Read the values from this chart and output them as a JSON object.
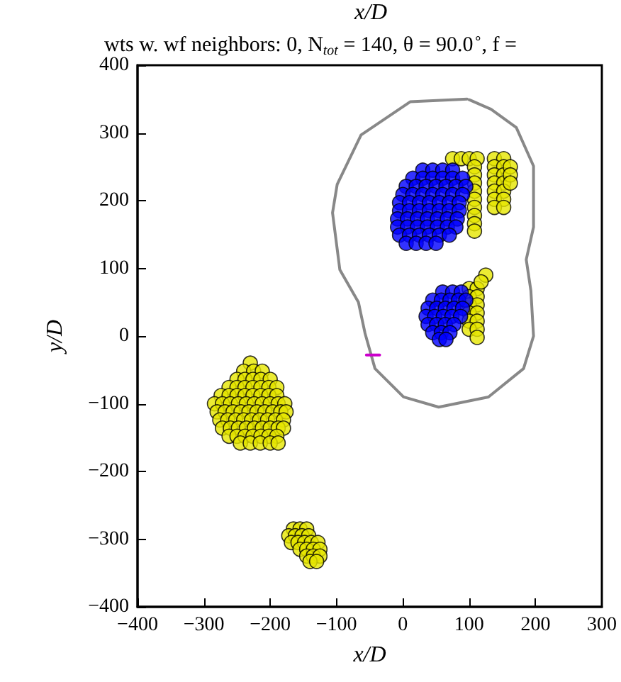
{
  "chart_data": {
    "type": "scatter",
    "title": "wts w. wf neighbors: 0, N$_{tot}$ = 140, θ = 90.0$^{∘}$, f =",
    "xlabel": "x/D",
    "ylabel": "y/D",
    "annotations": [
      "x/D"
    ],
    "xlim": [
      -400,
      300
    ],
    "xticks": [
      -400,
      -300,
      -200,
      -100,
      0,
      100,
      200,
      300
    ],
    "ylim": [
      -400,
      400
    ],
    "yticks": [
      -400,
      -300,
      -200,
      -100,
      0,
      100,
      200,
      300,
      400
    ],
    "grid": false,
    "series": [
      {
        "type": "line",
        "marker": "none",
        "color": "#888888",
        "x": [
          97,
          11,
          -63,
          -99,
          -106,
          -95,
          -67,
          -57,
          -42,
          1,
          54,
          129,
          182,
          197,
          193,
          186,
          197,
          197,
          171,
          133,
          100
        ],
        "values": [
          350,
          346,
          297,
          224,
          182,
          98,
          50,
          4,
          -48,
          -90,
          -105,
          -90,
          -48,
          0,
          67,
          113,
          161,
          251,
          308,
          335,
          349
        ]
      },
      {
        "marker": "circle",
        "color": "#e6e600",
        "x": [
          -230,
          -240,
          -225,
          -212,
          -250,
          -238,
          -226,
          -214,
          -200,
          -262,
          -250,
          -238,
          -226,
          -214,
          -202,
          -190,
          -274,
          -262,
          -250,
          -238,
          -226,
          -214,
          -202,
          -190,
          -284,
          -272,
          -260,
          -248,
          -236,
          -224,
          -212,
          -200,
          -188,
          -178,
          -280,
          -268,
          -256,
          -244,
          -232,
          -220,
          -208,
          -196,
          -184,
          -176,
          -276,
          -264,
          -252,
          -240,
          -228,
          -216,
          -204,
          -192,
          -180,
          -272,
          -260,
          -248,
          -236,
          -224,
          -212,
          -200,
          -188,
          -180,
          -262,
          -250,
          -238,
          -226,
          -214,
          -202,
          -190,
          -245,
          -230,
          -215,
          -200,
          -188,
          -165,
          -155,
          -145,
          -172,
          -162,
          -152,
          -142,
          -168,
          -158,
          -148,
          -138,
          -128,
          -155,
          -145,
          -135,
          -125,
          -145,
          -135,
          -125,
          -140,
          -130,
          75,
          88,
          100,
          112,
          138,
          152,
          138,
          152,
          138,
          152,
          138,
          152,
          138,
          152,
          138,
          152,
          138,
          152,
          162,
          162,
          162,
          108,
          108,
          108,
          108,
          108,
          108,
          108,
          108,
          108,
          100,
          112,
          100,
          112,
          100,
          112,
          100,
          112,
          100,
          112,
          100,
          112,
          125,
          118,
          112
        ],
        "values": [
          -40,
          -52,
          -52,
          -52,
          -64,
          -64,
          -64,
          -64,
          -64,
          -76,
          -76,
          -76,
          -76,
          -76,
          -76,
          -76,
          -88,
          -88,
          -88,
          -88,
          -88,
          -88,
          -88,
          -88,
          -100,
          -100,
          -100,
          -100,
          -100,
          -100,
          -100,
          -100,
          -100,
          -100,
          -112,
          -112,
          -112,
          -112,
          -112,
          -112,
          -112,
          -112,
          -112,
          -112,
          -124,
          -124,
          -124,
          -124,
          -124,
          -124,
          -124,
          -124,
          -124,
          -136,
          -136,
          -136,
          -136,
          -136,
          -136,
          -136,
          -136,
          -136,
          -148,
          -148,
          -148,
          -148,
          -148,
          -148,
          -148,
          -158,
          -158,
          -158,
          -158,
          -158,
          -285,
          -285,
          -285,
          -295,
          -295,
          -295,
          -295,
          -305,
          -305,
          -305,
          -305,
          -305,
          -315,
          -315,
          -315,
          -315,
          -325,
          -325,
          -325,
          -333,
          -333,
          262,
          262,
          262,
          262,
          262,
          262,
          250,
          250,
          238,
          238,
          226,
          226,
          214,
          214,
          202,
          202,
          190,
          190,
          250,
          238,
          226,
          250,
          238,
          226,
          214,
          202,
          190,
          178,
          166,
          155,
          70,
          70,
          58,
          58,
          46,
          46,
          34,
          34,
          22,
          22,
          10,
          10,
          90,
          80,
          -2
        ]
      },
      {
        "marker": "circle",
        "color": "#0000ff",
        "x": [
          30,
          45,
          60,
          75,
          15,
          30,
          45,
          60,
          75,
          90,
          5,
          20,
          35,
          50,
          65,
          80,
          95,
          0,
          15,
          30,
          45,
          60,
          75,
          90,
          -5,
          10,
          25,
          40,
          55,
          70,
          85,
          -5,
          10,
          25,
          40,
          55,
          70,
          85,
          -8,
          7,
          22,
          37,
          52,
          67,
          82,
          -8,
          7,
          22,
          37,
          52,
          67,
          80,
          -5,
          10,
          25,
          40,
          55,
          70,
          5,
          20,
          35,
          50,
          60,
          75,
          88,
          45,
          58,
          71,
          84,
          95,
          38,
          51,
          64,
          77,
          90,
          35,
          48,
          61,
          74,
          87,
          38,
          51,
          64,
          77,
          45,
          58,
          71,
          55,
          65
        ],
        "values": [
          245,
          245,
          245,
          245,
          233,
          233,
          233,
          233,
          233,
          233,
          221,
          221,
          221,
          221,
          221,
          221,
          221,
          209,
          209,
          209,
          209,
          209,
          209,
          209,
          197,
          197,
          197,
          197,
          197,
          197,
          197,
          185,
          185,
          185,
          185,
          185,
          185,
          185,
          173,
          173,
          173,
          173,
          173,
          173,
          173,
          161,
          161,
          161,
          161,
          161,
          161,
          161,
          149,
          149,
          149,
          149,
          149,
          149,
          137,
          137,
          137,
          137,
          65,
          65,
          65,
          53,
          53,
          53,
          53,
          53,
          41,
          41,
          41,
          41,
          41,
          29,
          29,
          29,
          29,
          29,
          17,
          17,
          17,
          17,
          5,
          5,
          5,
          -5,
          -5
        ]
      },
      {
        "type": "line",
        "marker": "none",
        "color": "#cc00cc",
        "x": [
          -55,
          -35
        ],
        "values": [
          -28,
          -28
        ]
      }
    ]
  }
}
